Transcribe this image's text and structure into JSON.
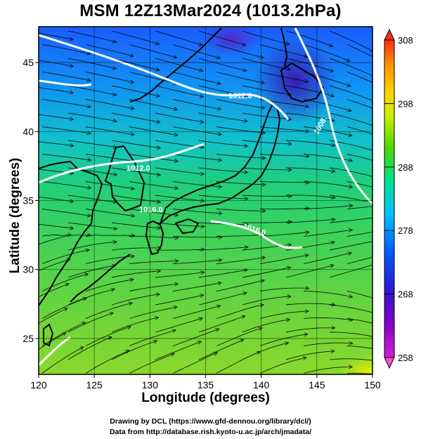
{
  "title": "MSM 12Z13Mar2024 (1013.2hPa)",
  "axes": {
    "xlabel": "Longitude (degrees)",
    "ylabel": "Latitude  (degrees)",
    "x_ticks": [
      "120",
      "125",
      "130",
      "135",
      "140",
      "145",
      "150"
    ],
    "y_ticks": [
      "25",
      "30",
      "35",
      "40",
      "45"
    ],
    "xlim": [
      120,
      150
    ],
    "ylim": [
      22.4,
      47.6
    ],
    "grid": true
  },
  "colorbar": {
    "ticks": [
      "258",
      "268",
      "278",
      "288",
      "298",
      "308"
    ],
    "range": [
      258,
      308
    ],
    "extend": "both",
    "colors": [
      "#ff4fd0",
      "#a000c8",
      "#3b1ac8",
      "#0050ff",
      "#00c8ff",
      "#00e07a",
      "#6cd200",
      "#e6ff00",
      "#ffc800",
      "#ff6a00",
      "#ff2020"
    ]
  },
  "contour_labels": [
    "1012.0",
    "1008.",
    "1012.0",
    "1016.0",
    "1016.0"
  ],
  "credits": {
    "line1": "Drawing by DCL (https://www.gfd-dennou.org/library/dcl/)",
    "line2": "Data from http://database.rish.kyoto-u.ac.jp/arch/jmadata/"
  },
  "chart_data": {
    "type": "heatmap",
    "title": "MSM 12Z13Mar2024 (1013.2hPa)",
    "xlabel": "Longitude (degrees)",
    "ylabel": "Latitude  (degrees)",
    "xlim": [
      120,
      150
    ],
    "ylim": [
      22.4,
      47.6
    ],
    "colorbar_range": [
      258,
      308
    ],
    "isobar_levels": [
      1008,
      1012,
      1016
    ],
    "grid": true
  }
}
